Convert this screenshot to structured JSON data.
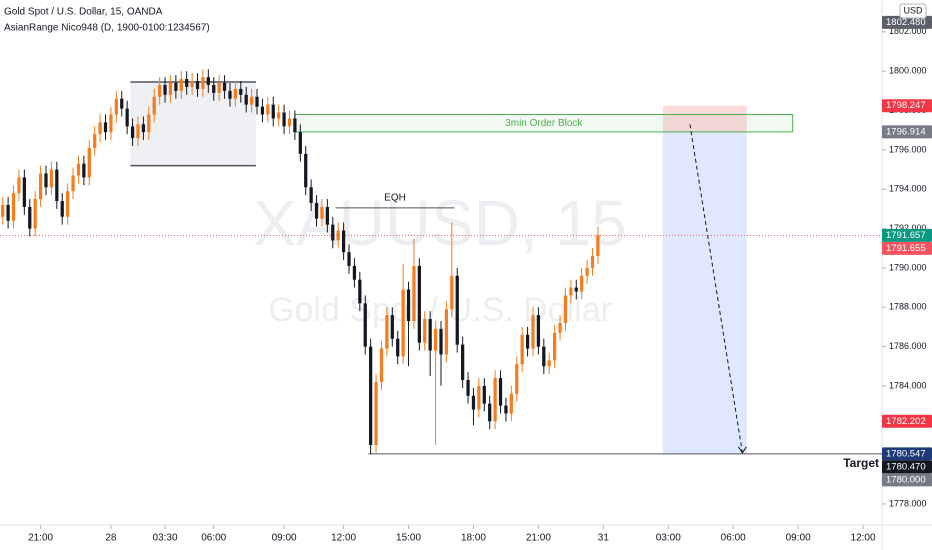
{
  "chart_data": {
    "type": "candlestick",
    "title": "Gold Spot / U.S. Dollar, 15, OANDA",
    "subtitle": "AsianRange Nico948 (D, 1900-0100:1234567)",
    "watermark": [
      "XAUUSD, 15",
      "Gold Spot / U.S. Dollar"
    ],
    "currency": "USD",
    "up_color": "#f57c1f",
    "down_color": "#131722",
    "open": [
      1792.6,
      1793.2,
      1792.4,
      1793.8,
      1794.6,
      1793.1,
      1792.0,
      1793.5,
      1794.8,
      1794.1,
      1795.0,
      1793.4,
      1792.6,
      1793.9,
      1794.7,
      1795.3,
      1794.6,
      1796.1,
      1796.8,
      1797.4,
      1796.9,
      1797.8,
      1798.6,
      1798.1,
      1797.2,
      1796.6,
      1797.3,
      1796.9,
      1797.8,
      1798.7,
      1799.3,
      1798.8,
      1799.4,
      1799.0,
      1799.6,
      1799.2,
      1799.5,
      1799.1,
      1799.7,
      1799.3,
      1798.9,
      1799.4,
      1799.0,
      1798.6,
      1799.1,
      1798.8,
      1798.3,
      1798.7,
      1798.2,
      1797.8,
      1798.3,
      1797.6,
      1797.9,
      1797.2,
      1797.6,
      1796.9,
      1795.8,
      1794.1,
      1793.3,
      1792.5,
      1793.1,
      1792.2,
      1791.4,
      1791.9,
      1790.8,
      1790.1,
      1789.4,
      1788.2,
      1786.0,
      1781.0,
      1784.2,
      1785.9,
      1787.6,
      1786.4,
      1785.5,
      1788.9,
      1787.3,
      1790.1,
      1786.2,
      1787.4,
      1785.8,
      1786.9,
      1785.6,
      1787.9,
      1789.6,
      1786.1,
      1784.3,
      1783.5,
      1782.8,
      1784.0,
      1783.1,
      1782.2,
      1784.4,
      1783.0,
      1782.6,
      1783.6,
      1785.1,
      1786.6,
      1785.9,
      1787.6,
      1786.0,
      1785.0,
      1785.3,
      1786.7,
      1787.2,
      1788.6,
      1789.0,
      1788.8,
      1789.6,
      1790.0,
      1790.6
    ],
    "high": [
      1793.6,
      1793.6,
      1794.2,
      1795.0,
      1795.0,
      1793.5,
      1793.9,
      1795.2,
      1795.2,
      1795.4,
      1795.4,
      1793.8,
      1794.3,
      1795.1,
      1795.7,
      1795.7,
      1796.5,
      1797.2,
      1797.8,
      1797.8,
      1798.2,
      1799.0,
      1799.0,
      1798.5,
      1797.6,
      1797.7,
      1797.7,
      1798.2,
      1799.1,
      1799.7,
      1799.7,
      1799.8,
      1799.8,
      1800.0,
      1800.0,
      1799.9,
      1799.9,
      1800.1,
      1800.1,
      1799.7,
      1799.8,
      1799.8,
      1799.4,
      1799.5,
      1799.5,
      1799.2,
      1799.1,
      1799.1,
      1798.6,
      1798.7,
      1798.7,
      1798.3,
      1798.3,
      1798.0,
      1798.0,
      1797.3,
      1796.2,
      1794.5,
      1793.7,
      1793.5,
      1793.5,
      1792.6,
      1792.3,
      1792.3,
      1791.2,
      1790.5,
      1789.8,
      1788.6,
      1786.4,
      1784.6,
      1786.3,
      1788.0,
      1788.0,
      1786.8,
      1790.2,
      1789.3,
      1791.5,
      1790.5,
      1787.8,
      1787.8,
      1787.3,
      1787.3,
      1788.3,
      1792.3,
      1790.0,
      1786.5,
      1784.7,
      1783.9,
      1784.4,
      1784.4,
      1783.5,
      1784.8,
      1784.8,
      1783.4,
      1784.0,
      1785.5,
      1787.0,
      1787.0,
      1788.0,
      1788.0,
      1786.4,
      1785.7,
      1787.1,
      1787.6,
      1789.0,
      1789.4,
      1789.4,
      1790.0,
      1790.4,
      1791.0,
      1792.1
    ],
    "low": [
      1792.2,
      1792.0,
      1792.0,
      1793.4,
      1792.7,
      1791.6,
      1791.6,
      1793.1,
      1793.7,
      1793.7,
      1793.0,
      1792.2,
      1792.2,
      1793.5,
      1794.3,
      1794.2,
      1794.2,
      1795.7,
      1796.4,
      1796.5,
      1796.5,
      1797.4,
      1797.7,
      1796.8,
      1796.2,
      1796.2,
      1796.5,
      1796.5,
      1797.4,
      1798.3,
      1798.4,
      1798.4,
      1798.6,
      1798.6,
      1798.8,
      1798.8,
      1798.7,
      1798.7,
      1798.9,
      1798.5,
      1798.5,
      1798.6,
      1798.2,
      1798.2,
      1798.4,
      1797.9,
      1797.9,
      1797.8,
      1797.4,
      1797.4,
      1797.2,
      1797.2,
      1796.8,
      1796.8,
      1796.5,
      1795.4,
      1793.7,
      1792.9,
      1792.1,
      1792.1,
      1791.8,
      1791.0,
      1791.0,
      1790.4,
      1789.7,
      1789.0,
      1787.8,
      1785.6,
      1780.55,
      1780.6,
      1783.8,
      1785.5,
      1786.0,
      1785.1,
      1785.1,
      1785.0,
      1786.9,
      1785.8,
      1785.8,
      1784.5,
      1781.0,
      1784.0,
      1785.2,
      1787.5,
      1785.7,
      1783.9,
      1783.1,
      1782.0,
      1782.4,
      1782.7,
      1781.8,
      1781.8,
      1782.6,
      1782.2,
      1782.2,
      1783.2,
      1784.7,
      1785.5,
      1785.5,
      1785.6,
      1784.6,
      1784.6,
      1784.9,
      1786.3,
      1786.8,
      1788.2,
      1788.4,
      1788.4,
      1789.2,
      1789.6,
      1790.2
    ],
    "close": [
      1793.2,
      1792.4,
      1793.8,
      1794.6,
      1793.1,
      1792.0,
      1793.5,
      1794.8,
      1794.1,
      1795.0,
      1793.4,
      1792.6,
      1793.9,
      1794.7,
      1795.3,
      1794.6,
      1796.1,
      1796.8,
      1797.4,
      1796.9,
      1797.8,
      1798.6,
      1798.1,
      1797.2,
      1796.6,
      1797.3,
      1796.9,
      1797.8,
      1798.7,
      1799.3,
      1798.8,
      1799.4,
      1799.0,
      1799.6,
      1799.2,
      1799.5,
      1799.1,
      1799.7,
      1799.3,
      1798.9,
      1799.4,
      1799.0,
      1798.6,
      1799.1,
      1798.8,
      1798.3,
      1798.7,
      1798.2,
      1797.8,
      1798.3,
      1797.6,
      1797.9,
      1797.2,
      1797.6,
      1796.9,
      1795.8,
      1794.1,
      1793.3,
      1792.5,
      1793.1,
      1792.2,
      1791.4,
      1791.9,
      1790.8,
      1790.1,
      1789.4,
      1788.2,
      1786.0,
      1781.0,
      1784.2,
      1785.9,
      1787.6,
      1786.4,
      1785.5,
      1788.9,
      1787.3,
      1790.1,
      1786.2,
      1787.4,
      1785.8,
      1786.9,
      1785.6,
      1787.9,
      1789.6,
      1786.1,
      1784.3,
      1783.5,
      1782.8,
      1784.0,
      1783.1,
      1782.2,
      1784.4,
      1783.0,
      1782.6,
      1783.6,
      1785.1,
      1786.6,
      1785.9,
      1787.6,
      1786.0,
      1785.0,
      1785.3,
      1786.7,
      1787.2,
      1788.6,
      1789.0,
      1788.8,
      1789.6,
      1790.0,
      1790.6,
      1791.66
    ],
    "xlim": [
      -0.5,
      162.5
    ],
    "xticks": [
      {
        "value": 7,
        "label": "21:00"
      },
      {
        "value": 20,
        "label": "28"
      },
      {
        "value": 30,
        "label": "03:30"
      },
      {
        "value": 39,
        "label": "06:00"
      },
      {
        "value": 52,
        "label": "09:00"
      },
      {
        "value": 63,
        "label": "12:00"
      },
      {
        "value": 75,
        "label": "15:00"
      },
      {
        "value": 87,
        "label": "18:00"
      },
      {
        "value": 99,
        "label": "21:00"
      },
      {
        "value": 111,
        "label": "31"
      },
      {
        "value": 123,
        "label": "03:00"
      },
      {
        "value": 135,
        "label": "06:00"
      },
      {
        "value": 147,
        "label": "09:00"
      },
      {
        "value": 159,
        "label": "12:00"
      }
    ],
    "ylim": [
      1776.93,
      1803.62
    ],
    "yticks": [
      {
        "value": 1778,
        "label": "1778.000"
      },
      {
        "value": 1780,
        "label": "1780.000"
      },
      {
        "value": 1782,
        "label": "1782.000"
      },
      {
        "value": 1784,
        "label": "1784.000"
      },
      {
        "value": 1786,
        "label": "1786.000"
      },
      {
        "value": 1788,
        "label": "1788.000"
      },
      {
        "value": 1790,
        "label": "1790.000"
      },
      {
        "value": 1792,
        "label": "1792.000"
      },
      {
        "value": 1794,
        "label": "1794.000"
      },
      {
        "value": 1796,
        "label": "1796.000"
      },
      {
        "value": 1798,
        "label": "1798.000"
      },
      {
        "value": 1800,
        "label": "1800.000"
      },
      {
        "value": 1802,
        "label": "1802.000"
      }
    ],
    "last_price": 1791.655,
    "price_labels": [
      {
        "value": 1802.48,
        "label": "1802.480",
        "color": "#5d606b"
      },
      {
        "value": 1798.247,
        "color": "#f23645"
      },
      {
        "value": 1796.914,
        "color": "#787b86"
      },
      {
        "value": 1791.657,
        "color": "#089981"
      },
      {
        "value": 1791.655,
        "color": "#f7525f"
      },
      {
        "value": 1782.202,
        "color": "#f23645"
      },
      {
        "value": 1780.547,
        "color": "#1e3a78"
      },
      {
        "value": 1780.47,
        "label": "1780.470",
        "color": "#131722"
      },
      {
        "value": 1780.0,
        "label": "1780.000",
        "color": "#787b86"
      }
    ],
    "asian_range": {
      "x": [
        23.6,
        46.8
      ],
      "y": [
        1795.2,
        1799.45
      ]
    },
    "order_block": {
      "label": "3min Order Block",
      "x": [
        54,
        146
      ],
      "y": [
        1796.914,
        1797.8
      ],
      "color": "#4caf50"
    },
    "eqh": {
      "label": "EQH",
      "x": [
        61.5,
        83.5
      ],
      "y": 1793.05
    },
    "target": {
      "label": "Target",
      "x": [
        67.6,
        162.5
      ],
      "y": 1780.547
    },
    "position": {
      "x": [
        122,
        137.5
      ],
      "stop": 1798.247,
      "entry": 1796.914,
      "target": 1780.547
    },
    "arrow": {
      "x": [
        127,
        136.7
      ],
      "y": [
        1797.3,
        1780.6
      ]
    }
  }
}
